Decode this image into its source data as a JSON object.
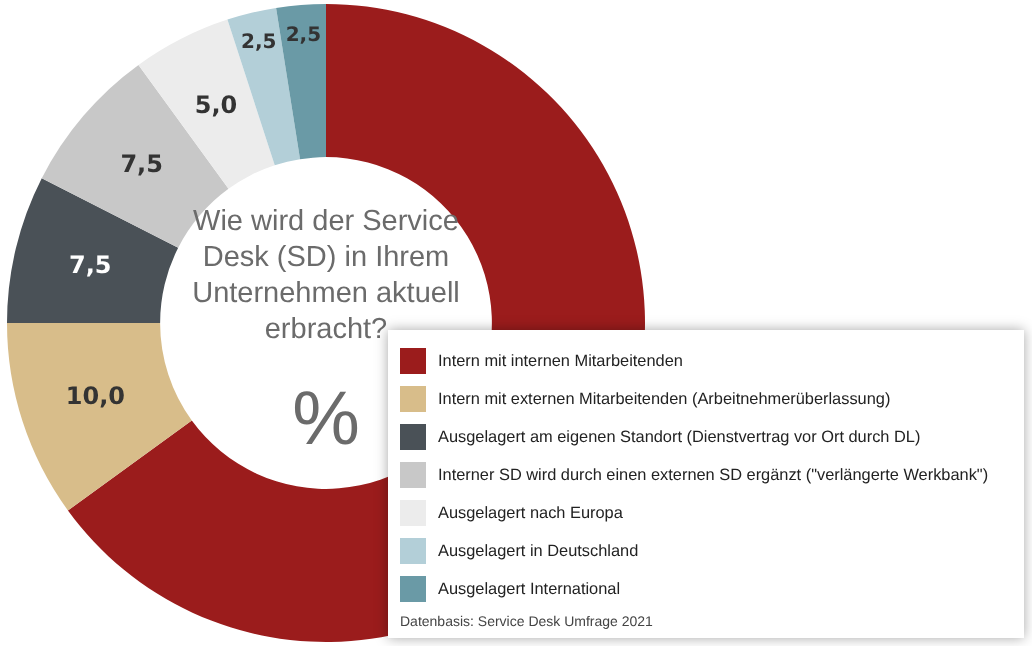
{
  "chart_data": {
    "type": "donut",
    "title": "Wie wird der Service Desk (SD) in Ihrem Unternehmen aktuell erbracht?",
    "subtitle": "%",
    "categories": [
      "Intern mit internen Mitarbeitenden",
      "Intern mit externen Mitarbeitenden (Arbeitnehmerüberlassung)",
      "Ausgelagert am eigenen Standort (Dienstvertrag vor Ort durch DL)",
      "Interner SD wird durch einen externen SD ergänzt (\"verlängerte Werkbank\")",
      "Ausgelagert nach Europa",
      "Ausgelagert in Deutschland",
      "Ausgelagert International"
    ],
    "values": [
      65,
      10,
      7.5,
      7.5,
      5,
      2.5,
      2.5
    ],
    "value_labels": [
      null,
      "10,0",
      "7,5",
      "7,5",
      "5,0",
      "2,5",
      "2,5"
    ],
    "colors": [
      "#9b1c1c",
      "#d8bd8a",
      "#4a5157",
      "#c8c8c8",
      "#ececec",
      "#b3cfd8",
      "#6a9aa6"
    ],
    "legend": "bottom right",
    "annotations": [
      "Datenbasis: Service Desk Umfrage 2021"
    ]
  }
}
